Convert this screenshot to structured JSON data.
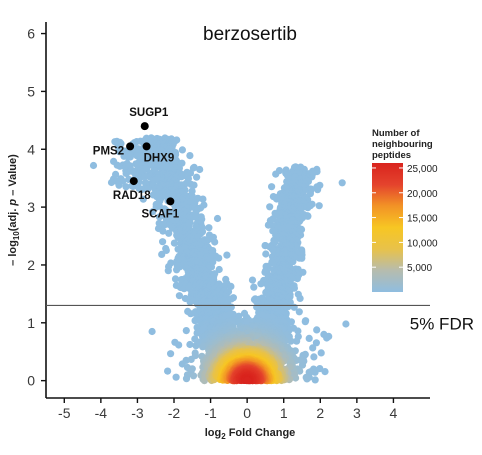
{
  "chart_data": {
    "type": "scatter",
    "title": "berzosertib",
    "xlabel_pre": "log",
    "xlabel_sub": "2",
    "xlabel_post": " Fold Change",
    "ylabel_pre": "– log",
    "ylabel_sub": "10",
    "ylabel_mid": "(adj. ",
    "ylabel_italic": "p",
    "ylabel_post": " – Value)",
    "xlim": [
      -5.5,
      5.0
    ],
    "ylim": [
      -0.3,
      6.2
    ],
    "xticks": [
      -5,
      -4,
      -3,
      -2,
      -1,
      0,
      1,
      2,
      3,
      4
    ],
    "yticks": [
      0,
      1,
      2,
      3,
      4,
      5,
      6
    ],
    "fdr_threshold": 1.3,
    "fdr_label": "5% FDR",
    "colorbar": {
      "title": [
        "Number of",
        "neighbouring",
        "peptides"
      ],
      "min": 0,
      "max": 26000,
      "ticks": [
        5000,
        10000,
        15000,
        20000,
        25000
      ],
      "tick_labels": [
        "5,000",
        "10,000",
        "15,000",
        "20,000",
        "25,000"
      ],
      "colors": [
        "#8fbde0",
        "#b6bcae",
        "#e8c24a",
        "#f7c623",
        "#f29326",
        "#e4432d",
        "#d9241e"
      ]
    },
    "highlighted": [
      {
        "name": "SUGP1",
        "x": -2.8,
        "y": 4.4
      },
      {
        "name": "PMS2",
        "x": -3.2,
        "y": 4.05
      },
      {
        "name": "DHX9",
        "x": -2.75,
        "y": 4.05
      },
      {
        "name": "RAD18",
        "x": -3.1,
        "y": 3.45
      },
      {
        "name": "SCAF1",
        "x": -2.1,
        "y": 3.1
      }
    ],
    "outliers": [
      {
        "x": 2.6,
        "y": 3.42
      },
      {
        "x": 2.7,
        "y": 0.98
      },
      {
        "x": -4.2,
        "y": 3.72
      },
      {
        "x": 2.1,
        "y": 0.8
      },
      {
        "x": -2.6,
        "y": 0.85
      }
    ],
    "bulk_density_description": "thousands of peptides forming a V shape; densest near x 0, y 0"
  }
}
